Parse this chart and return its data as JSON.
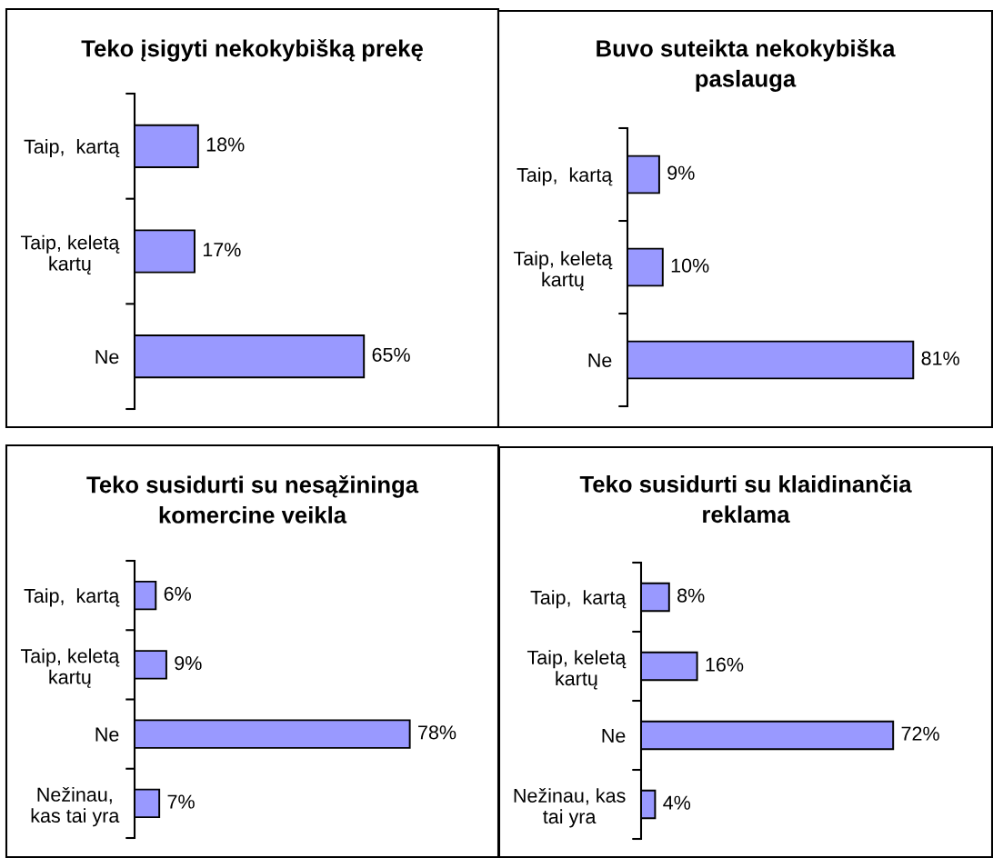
{
  "chart_data": [
    {
      "type": "bar",
      "orientation": "horizontal",
      "title": "Teko įsigyti nekokybišką prekę",
      "categories": [
        "Taip,  kartą",
        "Taip, keletą\nkartų",
        "Ne"
      ],
      "values": [
        18,
        17,
        65
      ],
      "value_labels": [
        "18%",
        "17%",
        "65%"
      ],
      "color": "#9999ff",
      "tick_labels": "y"
    },
    {
      "type": "bar",
      "orientation": "horizontal",
      "title": "Buvo suteikta nekokybiška\npaslauga",
      "categories": [
        "Taip,  kartą",
        "Taip, keletą\nkartų",
        "Ne"
      ],
      "values": [
        9,
        10,
        81
      ],
      "value_labels": [
        "9%",
        "10%",
        "81%"
      ],
      "color": "#9999ff",
      "tick_labels": "y"
    },
    {
      "type": "bar",
      "orientation": "horizontal",
      "title": "Teko susidurti su nesąžininga\nkomercine veikla",
      "categories": [
        "Taip,  kartą",
        "Taip, keletą\nkartų",
        "Ne",
        "Nežinau,\nkas tai yra"
      ],
      "values": [
        6,
        9,
        78,
        7
      ],
      "value_labels": [
        "6%",
        "9%",
        "78%",
        "7%"
      ],
      "color": "#9999ff",
      "tick_labels": "y"
    },
    {
      "type": "bar",
      "orientation": "horizontal",
      "title": "Teko susidurti su klaidinančia\nreklama",
      "categories": [
        "Taip,  kartą",
        "Taip, keletą\nkartų",
        "Ne",
        "Nežinau, kas\ntai yra"
      ],
      "values": [
        8,
        16,
        72,
        4
      ],
      "value_labels": [
        "8%",
        "16%",
        "72%",
        "4%"
      ],
      "color": "#9999ff",
      "tick_labels": "y"
    }
  ]
}
